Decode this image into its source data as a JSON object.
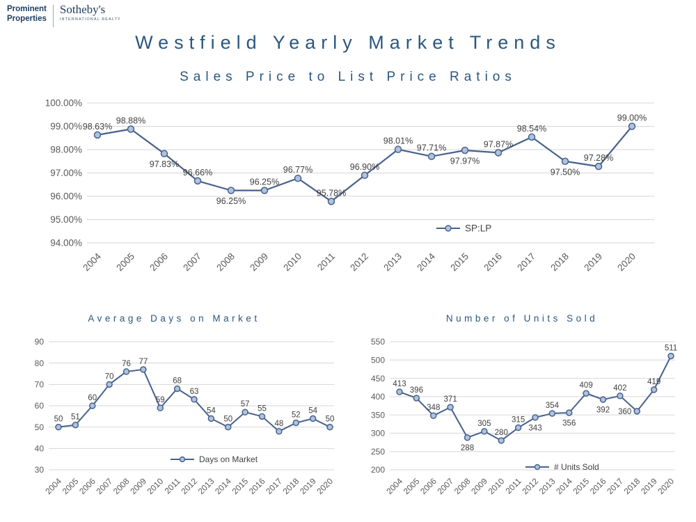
{
  "brand": {
    "prominent_line1": "Prominent",
    "prominent_line2": "Properties",
    "sothebys": "Sotheby's",
    "sothebys_sub": "INTERNATIONAL REALTY"
  },
  "page": {
    "title": "Westfield Yearly Market Trends"
  },
  "colors": {
    "navy": "#2a577f",
    "line": "#47618c",
    "marker_fill": "#aec3dd",
    "grid": "#d6d6d6",
    "axis_text": "#595959",
    "label_text": "#404040"
  },
  "chart_data": [
    {
      "id": "sp-lp-ratio",
      "type": "line",
      "title": "Sales Price to List Price Ratios",
      "legend": "SP:LP",
      "legend_position": "inside-right",
      "grid": true,
      "categories": [
        "2004",
        "2005",
        "2006",
        "2007",
        "2008",
        "2009",
        "2010",
        "2011",
        "2012",
        "2013",
        "2014",
        "2015",
        "2016",
        "2017",
        "2018",
        "2019",
        "2020"
      ],
      "values": [
        98.63,
        98.88,
        97.83,
        96.66,
        96.25,
        96.25,
        96.77,
        95.78,
        96.9,
        98.01,
        97.71,
        97.97,
        97.87,
        98.54,
        97.5,
        97.28,
        99.0
      ],
      "labels": [
        "98.63%",
        "98.88%",
        "97.83%",
        "96.66%",
        "96.25%",
        "96.25%",
        "96.77%",
        "95.78%",
        "96.90%",
        "98.01%",
        "97.71%",
        "97.97%",
        "97.87%",
        "98.54%",
        "97.50%",
        "97.28%",
        "99.00%"
      ],
      "label_pos": [
        "above",
        "above",
        "below",
        "above",
        "below",
        "above",
        "above",
        "above",
        "above",
        "above",
        "above",
        "below",
        "above",
        "above",
        "below",
        "above",
        "above"
      ],
      "ylim": [
        94,
        100
      ],
      "ytick_labels": [
        "100.00%",
        "99.00%",
        "98.00%",
        "97.00%",
        "96.00%",
        "95.00%",
        "94.00%"
      ]
    },
    {
      "id": "days-on-market",
      "type": "line",
      "title": "Average Days on Market",
      "legend": "Days on Market",
      "legend_position": "inside-bottom",
      "grid": true,
      "categories": [
        "2004",
        "2005",
        "2006",
        "2007",
        "2008",
        "2009",
        "2010",
        "2011",
        "2012",
        "2013",
        "2014",
        "2015",
        "2016",
        "2017",
        "2018",
        "2019",
        "2020"
      ],
      "values": [
        50,
        51,
        60,
        70,
        76,
        77,
        59,
        68,
        63,
        54,
        50,
        57,
        55,
        48,
        52,
        54,
        50
      ],
      "labels": [
        "50",
        "51",
        "60",
        "70",
        "76",
        "77",
        "59",
        "68",
        "63",
        "54",
        "50",
        "57",
        "55",
        "48",
        "52",
        "54",
        "50"
      ],
      "label_pos": [
        "above",
        "above",
        "above",
        "above",
        "above",
        "above",
        "above",
        "above",
        "above",
        "above",
        "above",
        "above",
        "above",
        "above",
        "above",
        "above",
        "above"
      ],
      "ylim": [
        30,
        90
      ],
      "ytick_labels": [
        "90",
        "80",
        "70",
        "60",
        "50",
        "40",
        "30"
      ]
    },
    {
      "id": "units-sold",
      "type": "line",
      "title": "Number of Units Sold",
      "legend": "# Units Sold",
      "legend_position": "inside-bottom",
      "grid": true,
      "categories": [
        "2004",
        "2005",
        "2006",
        "2007",
        "2008",
        "2009",
        "2010",
        "2011",
        "2012",
        "2013",
        "2014",
        "2015",
        "2016",
        "2017",
        "2018",
        "2019",
        "2020"
      ],
      "values": [
        413,
        396,
        348,
        371,
        288,
        305,
        280,
        315,
        343,
        354,
        356,
        409,
        392,
        402,
        360,
        419,
        511
      ],
      "labels": [
        "413",
        "396",
        "348",
        "371",
        "288",
        "305",
        "280",
        "315",
        "343",
        "354",
        "356",
        "409",
        "392",
        "402",
        "360",
        "419",
        "511"
      ],
      "label_pos": [
        "above",
        "above",
        "above",
        "above",
        "below",
        "above",
        "above",
        "above",
        "below",
        "above",
        "below",
        "above",
        "below",
        "above",
        "left",
        "above",
        "above"
      ],
      "ylim": [
        200,
        550
      ],
      "ytick_labels": [
        "550",
        "500",
        "450",
        "400",
        "350",
        "300",
        "250",
        "200"
      ]
    }
  ]
}
